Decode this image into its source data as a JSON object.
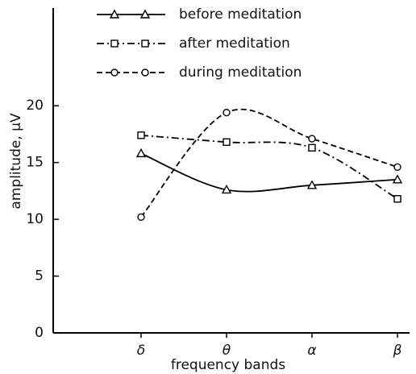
{
  "chart_data": {
    "type": "line",
    "x_label": "frequency bands",
    "y_label": "amplitude, μV",
    "categories": [
      null,
      "δ",
      "θ",
      "α",
      "β"
    ],
    "series": [
      {
        "name": "before meditation",
        "color": "#000000",
        "marker": "triangle",
        "dash": "solid",
        "values": [
          null,
          15.8,
          12.6,
          13.0,
          13.5
        ]
      },
      {
        "name": "after meditation",
        "color": "#000000",
        "marker": "square",
        "dash": "dashdot",
        "values": [
          null,
          17.4,
          16.8,
          16.3,
          11.8
        ]
      },
      {
        "name": "during meditation",
        "color": "#000000",
        "marker": "circle",
        "dash": "dashed",
        "values": [
          null,
          10.2,
          19.4,
          17.1,
          14.6
        ]
      }
    ],
    "ylim": [
      0,
      28.6
    ],
    "yticks": [
      0,
      5,
      10,
      15,
      20
    ],
    "grid": false
  }
}
